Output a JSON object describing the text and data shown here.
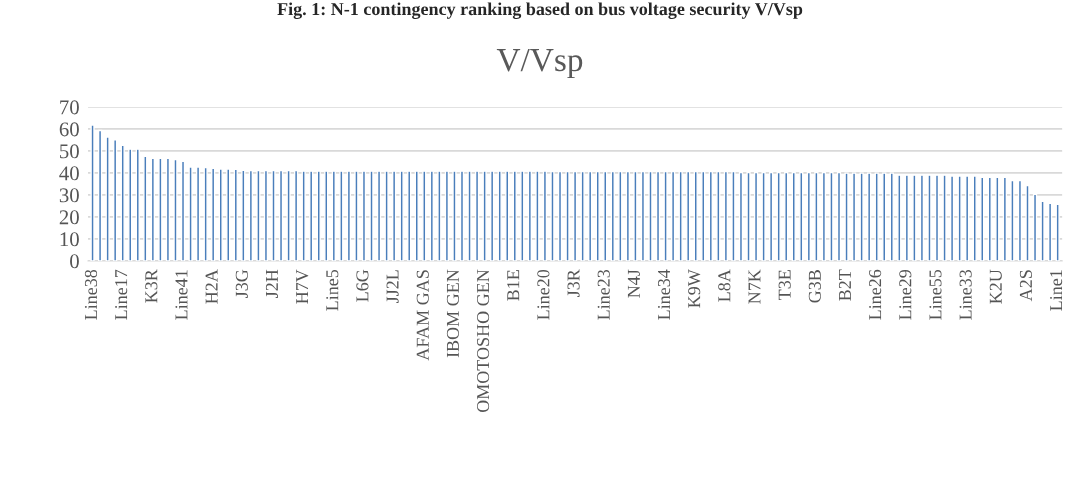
{
  "chart_data": {
    "type": "bar",
    "title": "V/Vsp",
    "annotations": [
      "Fig. 1: N-1 contingency ranking based on bus voltage security V/Vsp"
    ],
    "categories": [
      "Line38",
      null,
      null,
      null,
      "Line17",
      null,
      null,
      null,
      "K3R",
      null,
      null,
      null,
      "Line41",
      null,
      null,
      null,
      "H2A",
      null,
      null,
      null,
      "J3G",
      null,
      null,
      null,
      "J2H",
      null,
      null,
      null,
      "H7V",
      null,
      null,
      null,
      "Line5",
      null,
      null,
      null,
      "L6G",
      null,
      null,
      null,
      "JJ2L",
      null,
      null,
      null,
      "AFAM GAS",
      null,
      null,
      null,
      "IBOM GEN",
      null,
      null,
      null,
      "OMOTOSHO GEN",
      null,
      null,
      null,
      "B1E",
      null,
      null,
      null,
      "Line20",
      null,
      null,
      null,
      "J3R",
      null,
      null,
      null,
      "Line23",
      null,
      null,
      null,
      "N4J",
      null,
      null,
      null,
      "Line34",
      null,
      null,
      null,
      "K9W",
      null,
      null,
      null,
      "L8A",
      null,
      null,
      null,
      "N7K",
      null,
      null,
      null,
      "T3E",
      null,
      null,
      null,
      "G3B",
      null,
      null,
      null,
      "B2T",
      null,
      null,
      null,
      "Line26",
      null,
      null,
      null,
      "Line29",
      null,
      null,
      null,
      "Line55",
      null,
      null,
      null,
      "Line33",
      null,
      null,
      null,
      "K2U",
      null,
      null,
      null,
      "A2S",
      null,
      null,
      null,
      "Line1"
    ],
    "values": [
      61.8,
      59.3,
      56.3,
      55.1,
      52.6,
      50.8,
      50.8,
      47.6,
      46.7,
      46.7,
      46.7,
      46.1,
      45.3,
      42.7,
      42.7,
      42.4,
      42.1,
      41.8,
      41.8,
      41.7,
      41.2,
      41.1,
      41.1,
      41.1,
      41.1,
      41.1,
      41.1,
      41.1,
      40.8,
      40.8,
      40.8,
      40.8,
      40.8,
      40.8,
      40.8,
      40.8,
      40.8,
      40.8,
      40.8,
      40.8,
      40.8,
      40.8,
      40.8,
      40.8,
      40.8,
      40.8,
      40.8,
      40.8,
      40.8,
      40.8,
      40.8,
      40.8,
      40.8,
      40.8,
      40.8,
      40.8,
      40.8,
      40.8,
      40.8,
      40.8,
      40.8,
      40.6,
      40.6,
      40.6,
      40.6,
      40.6,
      40.6,
      40.6,
      40.6,
      40.6,
      40.6,
      40.6,
      40.6,
      40.6,
      40.6,
      40.6,
      40.6,
      40.6,
      40.6,
      40.6,
      40.6,
      40.6,
      40.6,
      40.6,
      40.6,
      40.6,
      40.2,
      40.2,
      40.2,
      40.2,
      40.2,
      40.2,
      40.2,
      40.2,
      40.2,
      40.2,
      40.2,
      40.2,
      40.2,
      40.2,
      39.9,
      39.9,
      39.9,
      39.9,
      39.9,
      39.9,
      39.9,
      39.0,
      39.0,
      39.0,
      39.0,
      39.0,
      39.0,
      39.0,
      38.6,
      38.6,
      38.6,
      38.6,
      38.0,
      38.0,
      38.0,
      38.0,
      36.5,
      36.5,
      34.2,
      30.3,
      27.1,
      26.2,
      25.7
    ],
    "color": "#4a7ebb",
    "ylim": [
      0,
      70
    ],
    "yticks": [
      0,
      10,
      20,
      30,
      40,
      50,
      60,
      70
    ],
    "grid": "y",
    "legend": false
  }
}
